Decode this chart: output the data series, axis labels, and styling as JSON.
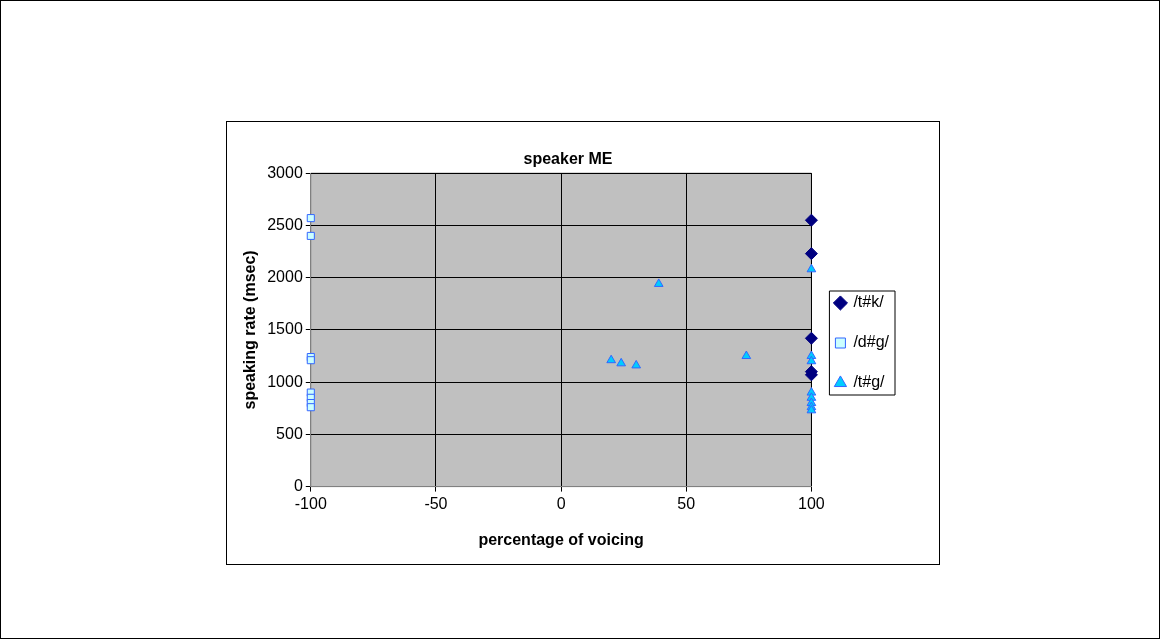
{
  "chart_data": {
    "type": "scatter",
    "title": "speaker ME",
    "xlabel": "percentage of voicing",
    "ylabel": "speaking rate (msec)",
    "xlim": [
      -100,
      100
    ],
    "xticks": [
      -100,
      -50,
      0,
      50,
      100
    ],
    "ylim": [
      0,
      3000
    ],
    "yticks": [
      0,
      500,
      1000,
      1500,
      2000,
      2500,
      3000
    ],
    "grid": true,
    "legend": "right",
    "series": [
      {
        "name": "/t#k/",
        "color": "#000080",
        "marker": "diamond",
        "x": [
          100,
          100,
          100,
          100,
          100
        ],
        "values": [
          2550,
          2230,
          1420,
          1100,
          1070
        ]
      },
      {
        "name": "/d#g/",
        "color": "#ccffff",
        "marker": "square",
        "x": [
          -100,
          -100,
          -100,
          -100,
          -100,
          -100,
          -100,
          -100
        ],
        "values": [
          2570,
          2400,
          1240,
          1210,
          900,
          850,
          800,
          760
        ]
      },
      {
        "name": "/t#g/",
        "color": "#00ccff",
        "marker": "triangle",
        "x": [
          20,
          24,
          30,
          39,
          74,
          100,
          100,
          100,
          100,
          100,
          100,
          100,
          100
        ],
        "values": [
          1210,
          1180,
          1160,
          1940,
          1250,
          2080,
          1250,
          1200,
          900,
          850,
          800,
          760,
          730
        ]
      }
    ]
  }
}
